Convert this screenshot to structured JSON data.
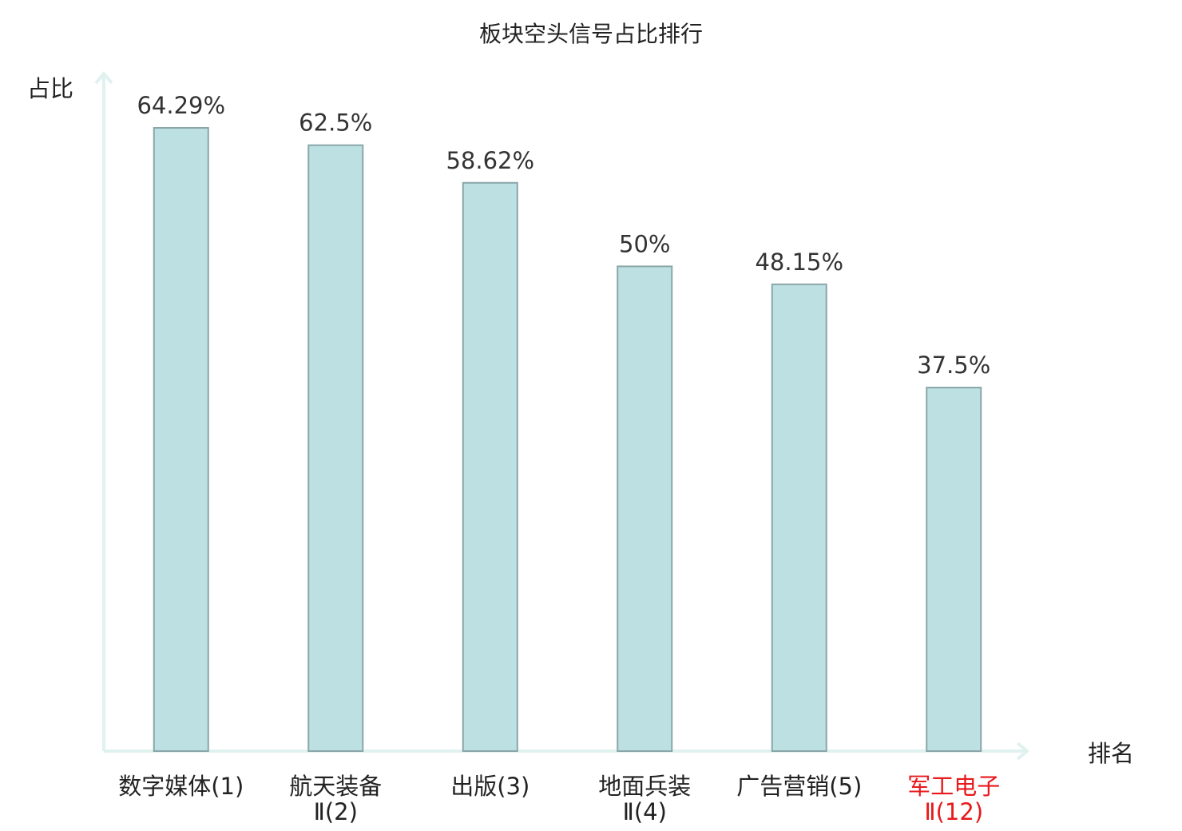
{
  "chart_data": {
    "type": "bar",
    "title": "板块空头信号占比排行",
    "ylabel": "占比",
    "xlabel": "排名",
    "ylim": [
      0,
      70
    ],
    "grid": false,
    "legend": "none",
    "categories": [
      [
        "数字媒体(1)"
      ],
      [
        "航天装备",
        "Ⅱ(2)"
      ],
      [
        "出版(3)"
      ],
      [
        "地面兵装",
        "Ⅱ(4)"
      ],
      [
        "广告营销(5)"
      ],
      [
        "军工电子",
        "Ⅱ(12)"
      ]
    ],
    "values": [
      64.29,
      62.5,
      58.62,
      50,
      48.15,
      37.5
    ],
    "value_labels": [
      "64.29%",
      "62.5%",
      "58.62%",
      "50%",
      "48.15%",
      "37.5%"
    ],
    "highlight_index": 5
  },
  "colors": {
    "bar_fill": "#bde0e3",
    "bar_stroke": "#8aa6a9",
    "axis": "#e0f2ef",
    "text": "#222222",
    "value_text": "#333333",
    "highlight": "#e8191c"
  }
}
